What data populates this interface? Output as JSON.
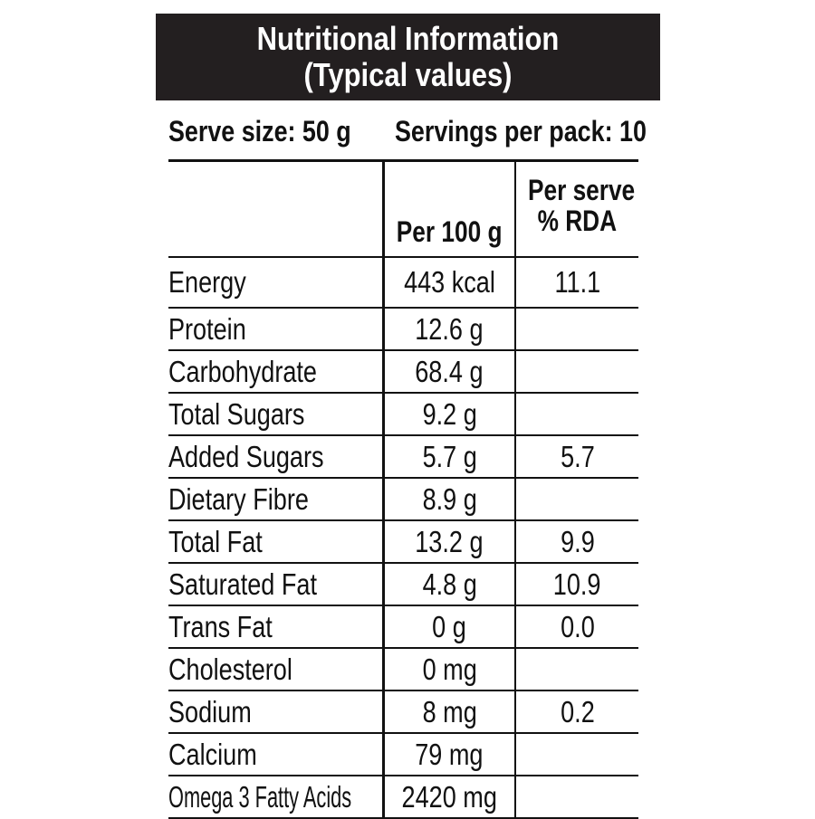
{
  "header": {
    "title_line1": "Nutritional Information",
    "title_line2": "(Typical values)"
  },
  "serving": {
    "serve_size": "Serve size: 50 g",
    "servings_per_pack": "Servings per pack: 10"
  },
  "table": {
    "columns": {
      "nutrient": "",
      "per_100g": "Per 100 g",
      "rda_line1": "Per serve",
      "rda_line2": "% RDA"
    },
    "rows": [
      {
        "name": "Energy",
        "per_100g": "443 kcal",
        "rda": "11.1"
      },
      {
        "name": "Protein",
        "per_100g": "12.6 g",
        "rda": ""
      },
      {
        "name": "Carbohydrate",
        "per_100g": "68.4 g",
        "rda": ""
      },
      {
        "name": "Total Sugars",
        "per_100g": "9.2 g",
        "rda": ""
      },
      {
        "name": "Added Sugars",
        "per_100g": "5.7 g",
        "rda": "5.7"
      },
      {
        "name": "Dietary Fibre",
        "per_100g": "8.9 g",
        "rda": ""
      },
      {
        "name": "Total Fat",
        "per_100g": "13.2 g",
        "rda": "9.9"
      },
      {
        "name": "Saturated Fat",
        "per_100g": "4.8 g",
        "rda": "10.9"
      },
      {
        "name": "Trans Fat",
        "per_100g": "0 g",
        "rda": "0.0"
      },
      {
        "name": "Cholesterol",
        "per_100g": "0 mg",
        "rda": ""
      },
      {
        "name": "Sodium",
        "per_100g": "8 mg",
        "rda": "0.2"
      },
      {
        "name": "Calcium",
        "per_100g": "79 mg",
        "rda": ""
      },
      {
        "name": "Omega 3 Fatty Acids",
        "per_100g": "2420 mg",
        "rda": ""
      }
    ]
  }
}
